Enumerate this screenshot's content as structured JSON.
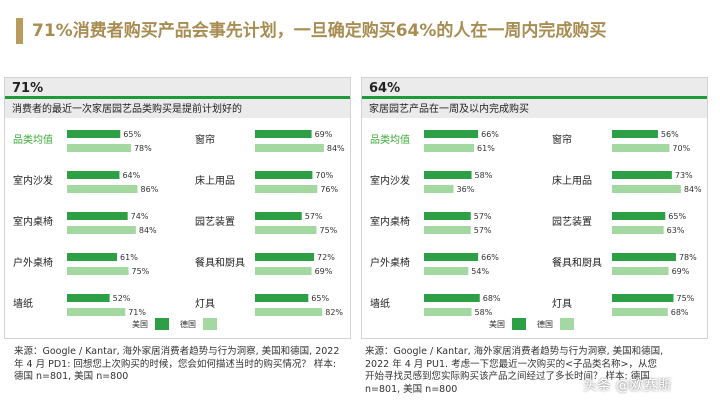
{
  "title": "71%消费者购买产品会事先计划，一旦确定购买64%的人在一周内完成购买",
  "colors": {
    "gold": "#a88d52",
    "dark_green": "#2da046",
    "light_green": "#a3d9a0",
    "avg_label": "#3aaa35"
  },
  "legend": {
    "series1": "美国",
    "series2": "德国"
  },
  "chart_data": [
    {
      "type": "bar",
      "headline": "71%",
      "subtitle": "消费者的最近一次家居园艺品类购买是提前计划好的",
      "series": [
        {
          "name": "美国"
        },
        {
          "name": "德国"
        }
      ],
      "left": [
        {
          "label": "品类均值",
          "values": [
            65,
            78
          ],
          "highlight": true
        },
        {
          "label": "室内沙发",
          "values": [
            64,
            86
          ]
        },
        {
          "label": "室内桌椅",
          "values": [
            74,
            84
          ]
        },
        {
          "label": "户外桌椅",
          "values": [
            61,
            75
          ]
        },
        {
          "label": "墙纸",
          "values": [
            52,
            71
          ]
        }
      ],
      "right": [
        {
          "label": "窗帘",
          "values": [
            69,
            84
          ]
        },
        {
          "label": "床上用品",
          "values": [
            70,
            76
          ]
        },
        {
          "label": "园艺装置",
          "values": [
            57,
            75
          ]
        },
        {
          "label": "餐具和厨具",
          "values": [
            72,
            69
          ]
        },
        {
          "label": "灯具",
          "values": [
            65,
            82
          ]
        }
      ],
      "source": "来源：Google / Kantar, 海外家居消费者趋势与行为洞察, 美国和德国, 2022 年 4 月 PD1: 回想您上次购买的时候，您会如何描述当时的购买情况？ 样本: 德国 n=801, 美国 n=800"
    },
    {
      "type": "bar",
      "headline": "64%",
      "subtitle": "家居园艺产品在一周及以内完成购买",
      "series": [
        {
          "name": "美国"
        },
        {
          "name": "德国"
        }
      ],
      "left": [
        {
          "label": "品类均值",
          "values": [
            66,
            61
          ],
          "highlight": true
        },
        {
          "label": "室内沙发",
          "values": [
            58,
            36
          ]
        },
        {
          "label": "室内桌椅",
          "values": [
            57,
            57
          ]
        },
        {
          "label": "户外桌椅",
          "values": [
            66,
            54
          ]
        },
        {
          "label": "墙纸",
          "values": [
            68,
            58
          ]
        }
      ],
      "right": [
        {
          "label": "窗帘",
          "values": [
            56,
            70
          ]
        },
        {
          "label": "床上用品",
          "values": [
            73,
            84
          ]
        },
        {
          "label": "园艺装置",
          "values": [
            65,
            63
          ]
        },
        {
          "label": "餐具和厨具",
          "values": [
            78,
            69
          ]
        },
        {
          "label": "灯具",
          "values": [
            75,
            68
          ]
        }
      ],
      "source": "来源：Google / Kantar, 海外家居消费者趋势与行为洞察, 美国和德国, 2022 年 4 月 PU1. 考虑一下您最近一次购买的<子品类名称>，从您开始寻找灵感到您实际购买该产品之间经过了多长时间？ 样本: 德国 n=801, 美国 n=800"
    }
  ],
  "watermark": "头条 @欧赛斯"
}
